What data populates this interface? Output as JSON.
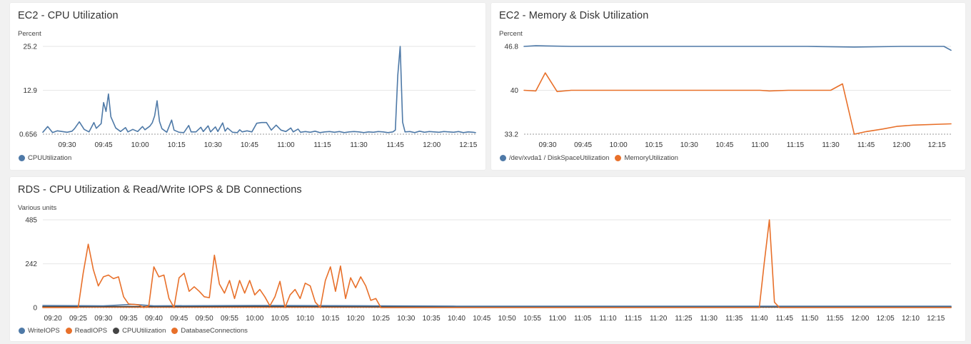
{
  "chart_data": [
    {
      "type": "line",
      "title": "EC2 - CPU Utilization",
      "ylabel": "Percent",
      "yticks": [
        "25.2",
        "12.9",
        "0.656"
      ],
      "ylim": [
        0.656,
        25.2
      ],
      "x_ticks": [
        "09:30",
        "09:45",
        "10:00",
        "10:15",
        "10:30",
        "10:45",
        "11:00",
        "11:15",
        "11:30",
        "11:45",
        "12:00",
        "12:15"
      ],
      "x_start_min": 560,
      "x_end_min": 738,
      "legend": [
        {
          "name": "CPUUtilization",
          "color": "#4e79a7"
        }
      ],
      "series": [
        {
          "name": "CPUUtilization",
          "color": "#4e79a7",
          "points": [
            [
              560,
              1.2
            ],
            [
              562,
              2.8
            ],
            [
              564,
              1.1
            ],
            [
              566,
              1.6
            ],
            [
              568,
              1.4
            ],
            [
              570,
              1.2
            ],
            [
              572,
              1.5
            ],
            [
              573,
              2.2
            ],
            [
              575,
              4.1
            ],
            [
              577,
              2.0
            ],
            [
              579,
              1.3
            ],
            [
              581,
              3.9
            ],
            [
              582,
              2.3
            ],
            [
              584,
              3.6
            ],
            [
              585,
              9.5
            ],
            [
              586,
              7.0
            ],
            [
              587,
              11.9
            ],
            [
              588,
              5.5
            ],
            [
              590,
              2.4
            ],
            [
              592,
              1.4
            ],
            [
              594,
              2.5
            ],
            [
              595,
              1.3
            ],
            [
              597,
              2.0
            ],
            [
              599,
              1.4
            ],
            [
              601,
              2.8
            ],
            [
              602,
              1.9
            ],
            [
              604,
              2.9
            ],
            [
              605,
              3.8
            ],
            [
              606,
              5.8
            ],
            [
              607,
              10.0
            ],
            [
              608,
              4.2
            ],
            [
              609,
              2.2
            ],
            [
              611,
              1.2
            ],
            [
              613,
              4.6
            ],
            [
              614,
              1.8
            ],
            [
              616,
              1.2
            ],
            [
              618,
              1.1
            ],
            [
              620,
              3.1
            ],
            [
              621,
              1.3
            ],
            [
              623,
              1.3
            ],
            [
              625,
              2.6
            ],
            [
              626,
              1.4
            ],
            [
              628,
              3.0
            ],
            [
              629,
              1.3
            ],
            [
              631,
              2.7
            ],
            [
              632,
              1.4
            ],
            [
              634,
              3.8
            ],
            [
              635,
              1.5
            ],
            [
              636,
              2.4
            ],
            [
              638,
              1.2
            ],
            [
              640,
              1.1
            ],
            [
              641,
              1.9
            ],
            [
              642,
              1.3
            ],
            [
              644,
              1.6
            ],
            [
              646,
              1.3
            ],
            [
              648,
              3.7
            ],
            [
              650,
              3.9
            ],
            [
              652,
              3.9
            ],
            [
              654,
              1.8
            ],
            [
              656,
              3.2
            ],
            [
              658,
              1.8
            ],
            [
              660,
              1.4
            ],
            [
              662,
              2.4
            ],
            [
              663,
              1.3
            ],
            [
              665,
              2.1
            ],
            [
              666,
              1.2
            ],
            [
              668,
              1.4
            ],
            [
              670,
              1.2
            ],
            [
              672,
              1.5
            ],
            [
              674,
              1.1
            ],
            [
              676,
              1.3
            ],
            [
              678,
              1.4
            ],
            [
              680,
              1.2
            ],
            [
              682,
              1.4
            ],
            [
              684,
              1.1
            ],
            [
              686,
              1.3
            ],
            [
              688,
              1.4
            ],
            [
              690,
              1.3
            ],
            [
              692,
              1.1
            ],
            [
              694,
              1.3
            ],
            [
              696,
              1.2
            ],
            [
              698,
              1.4
            ],
            [
              700,
              1.3
            ],
            [
              702,
              1.1
            ],
            [
              704,
              1.3
            ],
            [
              705,
              1.8
            ],
            [
              706,
              17.0
            ],
            [
              707,
              25.2
            ],
            [
              708,
              4.0
            ],
            [
              709,
              1.3
            ],
            [
              711,
              1.4
            ],
            [
              713,
              1.1
            ],
            [
              715,
              1.5
            ],
            [
              717,
              1.2
            ],
            [
              719,
              1.4
            ],
            [
              721,
              1.3
            ],
            [
              723,
              1.2
            ],
            [
              725,
              1.4
            ],
            [
              727,
              1.3
            ],
            [
              729,
              1.2
            ],
            [
              731,
              1.4
            ],
            [
              733,
              1.1
            ],
            [
              735,
              1.3
            ],
            [
              737,
              1.2
            ],
            [
              738,
              1.1
            ],
            [
              730,
              1.3
            ]
          ]
        }
      ]
    },
    {
      "type": "line",
      "title": "EC2 - Memory & Disk Utilization",
      "ylabel": "Percent",
      "yticks": [
        "46.8",
        "40",
        "33.2"
      ],
      "ylim": [
        33.2,
        46.8
      ],
      "x_ticks": [
        "09:30",
        "09:45",
        "10:00",
        "10:15",
        "10:30",
        "10:45",
        "11:00",
        "11:15",
        "11:30",
        "11:45",
        "12:00",
        "12:15"
      ],
      "x_start_min": 560,
      "x_end_min": 741,
      "legend": [
        {
          "name": "/dev/xvda1 / DiskSpaceUtilization",
          "color": "#4e79a7"
        },
        {
          "name": "MemoryUtilization",
          "color": "#e8702a"
        }
      ],
      "series": [
        {
          "name": "/dev/xvda1 / DiskSpaceUtilization",
          "color": "#4e79a7",
          "points": [
            [
              560,
              46.8
            ],
            [
              565,
              46.9
            ],
            [
              580,
              46.8
            ],
            [
              600,
              46.8
            ],
            [
              620,
              46.8
            ],
            [
              640,
              46.8
            ],
            [
              660,
              46.8
            ],
            [
              680,
              46.8
            ],
            [
              700,
              46.7
            ],
            [
              720,
              46.8
            ],
            [
              738,
              46.8
            ],
            [
              741,
              46.2
            ]
          ]
        },
        {
          "name": "MemoryUtilization",
          "color": "#e8702a",
          "points": [
            [
              560,
              40.0
            ],
            [
              565,
              39.9
            ],
            [
              569,
              42.7
            ],
            [
              574,
              39.8
            ],
            [
              580,
              40.0
            ],
            [
              600,
              40.0
            ],
            [
              620,
              40.0
            ],
            [
              640,
              40.0
            ],
            [
              660,
              40.0
            ],
            [
              664,
              39.9
            ],
            [
              672,
              40.0
            ],
            [
              690,
              40.0
            ],
            [
              695,
              41.0
            ],
            [
              700,
              33.2
            ],
            [
              705,
              33.6
            ],
            [
              712,
              34.0
            ],
            [
              718,
              34.4
            ],
            [
              725,
              34.6
            ],
            [
              741,
              34.8
            ]
          ]
        }
      ]
    },
    {
      "type": "line",
      "title": "RDS - CPU Utilization & Read/Write IOPS & DB Connections",
      "ylabel": "Various units",
      "yticks": [
        "485",
        "242",
        "0"
      ],
      "ylim": [
        0,
        485
      ],
      "x_ticks": [
        "09:20",
        "09:25",
        "09:30",
        "09:35",
        "09:40",
        "09:45",
        "09:50",
        "09:55",
        "10:00",
        "10:05",
        "10:10",
        "10:15",
        "10:20",
        "10:25",
        "10:30",
        "10:35",
        "10:40",
        "10:45",
        "10:50",
        "10:55",
        "11:00",
        "11:05",
        "11:10",
        "11:15",
        "11:20",
        "11:25",
        "11:30",
        "11:35",
        "11:40",
        "11:45",
        "11:50",
        "11:55",
        "12:00",
        "12:05",
        "12:10",
        "12:15"
      ],
      "x_start_min": 558,
      "x_end_min": 738,
      "legend": [
        {
          "name": "WriteIOPS",
          "color": "#4e79a7"
        },
        {
          "name": "ReadIOPS",
          "color": "#e8702a"
        },
        {
          "name": "CPUUtilization",
          "color": "#444444"
        },
        {
          "name": "DatabaseConnections",
          "color": "#e8702a"
        }
      ],
      "series": [
        {
          "name": "ReadIOPS",
          "color": "#e8702a",
          "points": [
            [
              558,
              0
            ],
            [
              565,
              0
            ],
            [
              566,
              190
            ],
            [
              567,
              350
            ],
            [
              568,
              210
            ],
            [
              569,
              120
            ],
            [
              570,
              170
            ],
            [
              571,
              180
            ],
            [
              572,
              160
            ],
            [
              573,
              170
            ],
            [
              574,
              60
            ],
            [
              575,
              20
            ],
            [
              577,
              15
            ],
            [
              578,
              0
            ],
            [
              579,
              10
            ],
            [
              580,
              225
            ],
            [
              581,
              170
            ],
            [
              582,
              180
            ],
            [
              583,
              50
            ],
            [
              584,
              0
            ],
            [
              585,
              165
            ],
            [
              586,
              190
            ],
            [
              587,
              90
            ],
            [
              588,
              115
            ],
            [
              589,
              90
            ],
            [
              590,
              60
            ],
            [
              591,
              55
            ],
            [
              592,
              290
            ],
            [
              593,
              130
            ],
            [
              594,
              80
            ],
            [
              595,
              150
            ],
            [
              596,
              50
            ],
            [
              597,
              150
            ],
            [
              598,
              80
            ],
            [
              599,
              150
            ],
            [
              600,
              70
            ],
            [
              601,
              100
            ],
            [
              602,
              60
            ],
            [
              603,
              10
            ],
            [
              604,
              60
            ],
            [
              605,
              145
            ],
            [
              606,
              0
            ],
            [
              607,
              70
            ],
            [
              608,
              100
            ],
            [
              609,
              50
            ],
            [
              610,
              135
            ],
            [
              611,
              120
            ],
            [
              612,
              30
            ],
            [
              613,
              0
            ],
            [
              614,
              150
            ],
            [
              615,
              225
            ],
            [
              616,
              90
            ],
            [
              617,
              230
            ],
            [
              618,
              50
            ],
            [
              619,
              165
            ],
            [
              620,
              110
            ],
            [
              621,
              170
            ],
            [
              622,
              120
            ],
            [
              623,
              40
            ],
            [
              624,
              50
            ],
            [
              625,
              0
            ],
            [
              630,
              0
            ],
            [
              700,
              0
            ],
            [
              701,
              250
            ],
            [
              702,
              485
            ],
            [
              703,
              30
            ],
            [
              704,
              0
            ],
            [
              738,
              0
            ]
          ]
        },
        {
          "name": "WriteIOPS",
          "color": "#4e79a7",
          "points": [
            [
              558,
              12
            ],
            [
              570,
              10
            ],
            [
              576,
              18
            ],
            [
              580,
              10
            ],
            [
              600,
              12
            ],
            [
              625,
              10
            ],
            [
              640,
              8
            ],
            [
              680,
              8
            ],
            [
              700,
              8
            ],
            [
              720,
              8
            ],
            [
              738,
              8
            ]
          ]
        },
        {
          "name": "CPUUtilization",
          "color": "#444444",
          "points": [
            [
              558,
              6
            ],
            [
              580,
              6
            ],
            [
              600,
              7
            ],
            [
              625,
              5
            ],
            [
              650,
              4
            ],
            [
              700,
              4
            ],
            [
              738,
              4
            ]
          ]
        },
        {
          "name": "DatabaseConnections",
          "color": "#e8702a",
          "points": [
            [
              558,
              2
            ],
            [
              738,
              2
            ]
          ]
        }
      ]
    }
  ]
}
